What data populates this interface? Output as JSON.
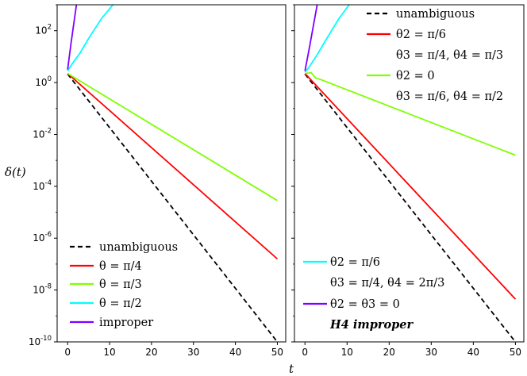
{
  "chart_data": {
    "type": "line",
    "xlabel": "t",
    "ylabel": "δ(t)",
    "yscale": "log",
    "xlim": [
      -2.5,
      52
    ],
    "ylim_log10": [
      -10,
      3
    ],
    "xticks": [
      0,
      10,
      20,
      30,
      40,
      50
    ],
    "yticks_log10": [
      -10,
      -8,
      -6,
      -4,
      -2,
      0,
      2
    ],
    "ytick_base": "10",
    "ytick_exponents": [
      "-10",
      "-8",
      "-6",
      "-4",
      "-2",
      "0",
      "2"
    ],
    "panels": [
      {
        "name": "left",
        "legend_position": "bottom-left",
        "series": [
          {
            "name": "unambiguous",
            "color": "#000000",
            "dashed": true,
            "x": [
              0,
              50
            ],
            "log10_y": [
              0.33,
              -10.0
            ]
          },
          {
            "name": "θ = π/4",
            "color": "#ff0000",
            "dashed": false,
            "x": [
              0,
              50
            ],
            "log10_y": [
              0.35,
              -6.8
            ]
          },
          {
            "name": "θ = π/3",
            "color": "#7fff00",
            "dashed": false,
            "x": [
              0,
              50
            ],
            "log10_y": [
              0.35,
              -4.55
            ]
          },
          {
            "name": "θ = π/2",
            "color": "#00ffff",
            "dashed": false,
            "x": [
              0,
              1,
              3,
              5,
              8,
              10.8
            ],
            "log10_y": [
              0.45,
              0.7,
              1.15,
              1.7,
              2.45,
              3.0
            ]
          },
          {
            "name": "improper",
            "color": "#7f00ff",
            "dashed": false,
            "x": [
              0,
              0.8,
              2.1
            ],
            "log10_y": [
              0.5,
              1.5,
              3.0
            ]
          }
        ]
      },
      {
        "name": "right",
        "legend_position": "top-right and bottom-left",
        "series": [
          {
            "name": "unambiguous",
            "color": "#000000",
            "dashed": true,
            "x": [
              0,
              50
            ],
            "log10_y": [
              0.33,
              -10.0
            ]
          },
          {
            "name": "θ2 = π/6, θ3 = π/4, θ4 = π/3",
            "color": "#ff0000",
            "dashed": false,
            "x": [
              0,
              50
            ],
            "log10_y": [
              0.35,
              -8.35
            ]
          },
          {
            "name": "θ2 = 0, θ3 = π/6, θ4 = π/2",
            "color": "#7fff00",
            "dashed": false,
            "x": [
              0,
              1.5,
              2.5,
              4,
              50
            ],
            "log10_y": [
              0.35,
              0.38,
              0.18,
              0.1,
              -2.8
            ]
          },
          {
            "name": "θ2 = π/6, θ3 = π/4, θ4 = 2π/3",
            "color": "#00ffff",
            "dashed": false,
            "x": [
              0,
              1,
              3,
              5,
              8,
              10.5
            ],
            "log10_y": [
              0.4,
              0.6,
              1.1,
              1.65,
              2.45,
              3.0
            ]
          },
          {
            "name": "θ2 = θ3 = 0, H4 improper",
            "color": "#7f00ff",
            "dashed": false,
            "x": [
              0,
              1,
              2.9
            ],
            "log10_y": [
              0.45,
              1.3,
              3.0
            ]
          }
        ]
      }
    ],
    "legend_left": [
      {
        "label": "unambiguous",
        "color": "#000000",
        "dashed": true
      },
      {
        "label": "θ = π/4",
        "color": "#ff0000",
        "dashed": false
      },
      {
        "label": "θ = π/3",
        "color": "#7fff00",
        "dashed": false
      },
      {
        "label": "θ = π/2",
        "color": "#00ffff",
        "dashed": false
      },
      {
        "label": "improper",
        "color": "#7f00ff",
        "dashed": false
      }
    ],
    "legend_right_top": [
      {
        "label": "unambiguous",
        "label2": "",
        "color": "#000000",
        "dashed": true
      },
      {
        "label": "θ2 = π/6",
        "label2": "θ3 = π/4, θ4 = π/3",
        "color": "#ff0000",
        "dashed": false
      },
      {
        "label": "θ2 = 0",
        "label2": "θ3 = π/6, θ4 = π/2",
        "color": "#7fff00",
        "dashed": false
      }
    ],
    "legend_right_bottom": [
      {
        "label": "θ2 = π/6",
        "label2": "θ3 = π/4, θ4 = 2π/3",
        "color": "#00ffff",
        "dashed": false
      },
      {
        "label": "θ2 = θ3 = 0",
        "label2": "H4 improper",
        "color": "#7f00ff",
        "dashed": false
      }
    ]
  }
}
